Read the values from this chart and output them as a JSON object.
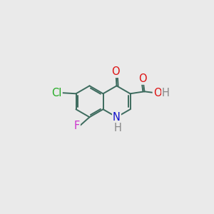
{
  "background_color": "#eaeaea",
  "bond_color": "#3d6b5e",
  "bond_width": 1.4,
  "atom_colors": {
    "O": "#dd1111",
    "N": "#1111cc",
    "Cl": "#22aa22",
    "F": "#cc33cc",
    "H": "#888888"
  },
  "font_size": 10.5,
  "fig_size": [
    3.0,
    3.0
  ],
  "dpi": 100,
  "L": 0.95
}
